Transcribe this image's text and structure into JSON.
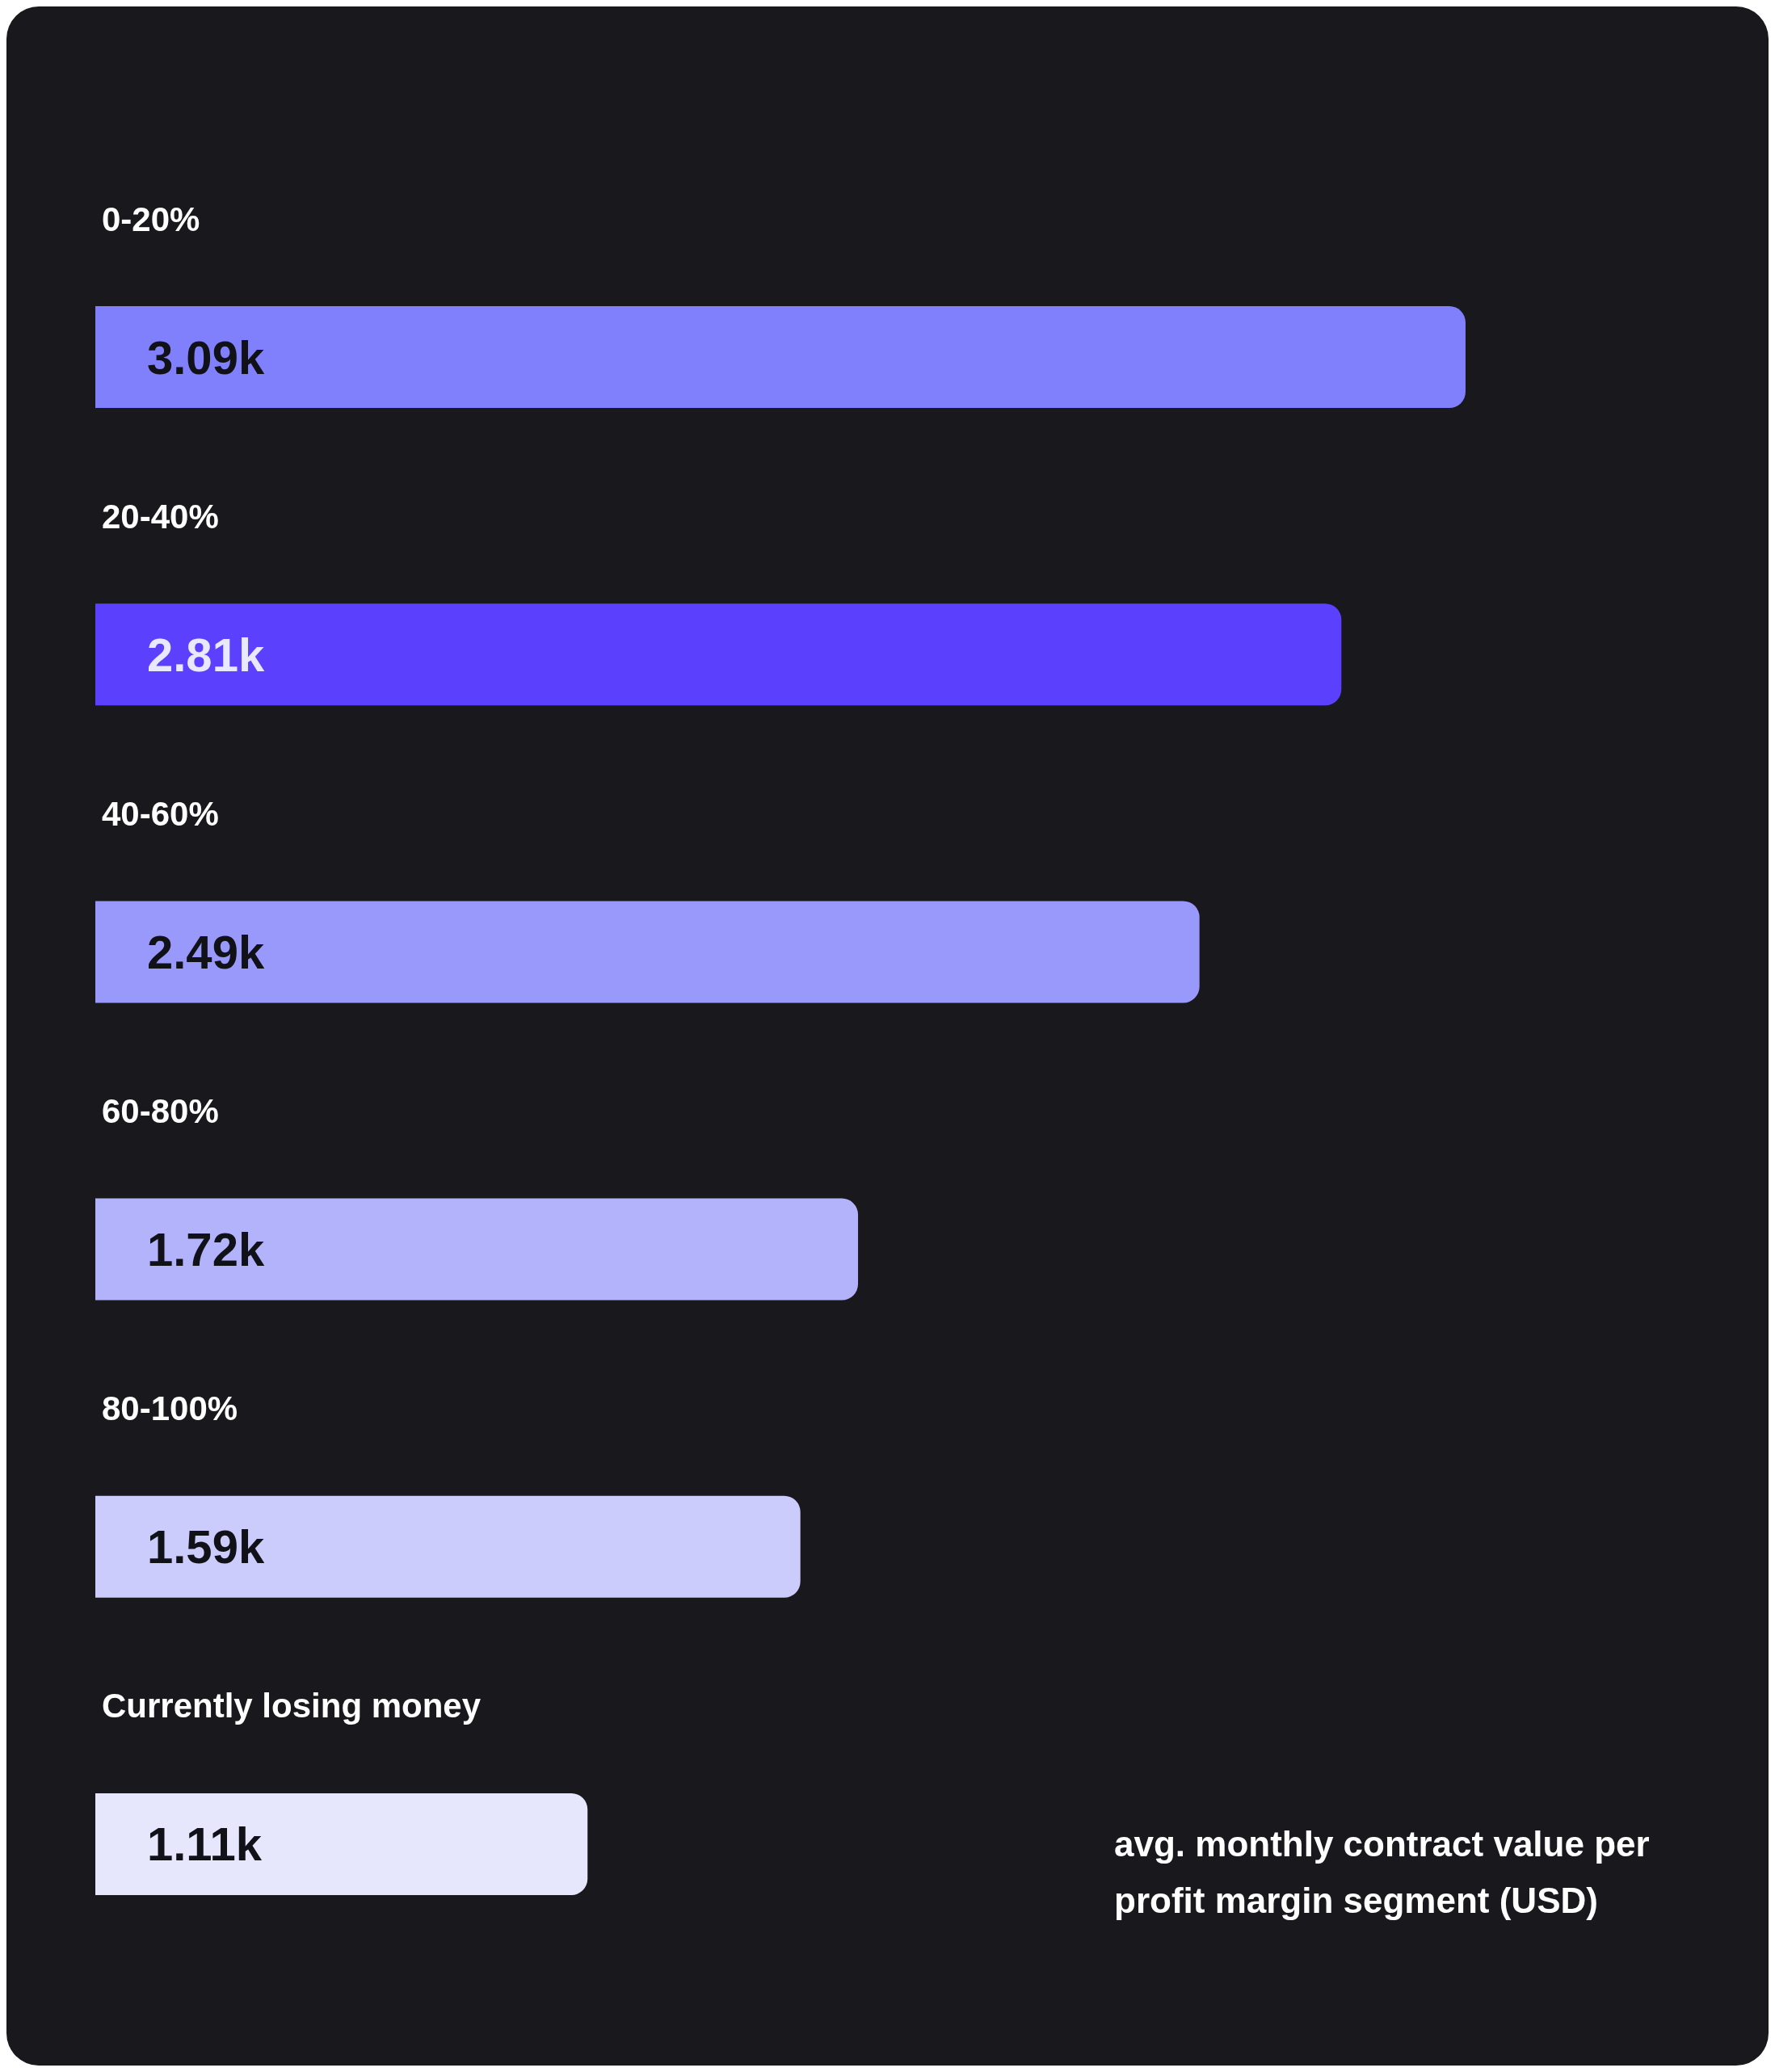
{
  "chart_data": {
    "type": "bar",
    "orientation": "horizontal",
    "categories": [
      "0-20%",
      "20-40%",
      "40-60%",
      "60-80%",
      "80-100%",
      "Currently losing money"
    ],
    "values": [
      3.09,
      2.81,
      2.49,
      1.72,
      1.59,
      1.11
    ],
    "colors": [
      "#8080fc",
      "#5b40fd",
      "#9999fc",
      "#b3b3fc",
      "#ccccfc",
      "#e6e6fc"
    ],
    "value_labels": [
      "3.09k",
      "2.81k",
      "2.49k",
      "1.72k",
      "1.59k",
      "1.11k"
    ],
    "annotations": [
      "avg. monthly contract value per profit margin segment (USD)"
    ]
  }
}
